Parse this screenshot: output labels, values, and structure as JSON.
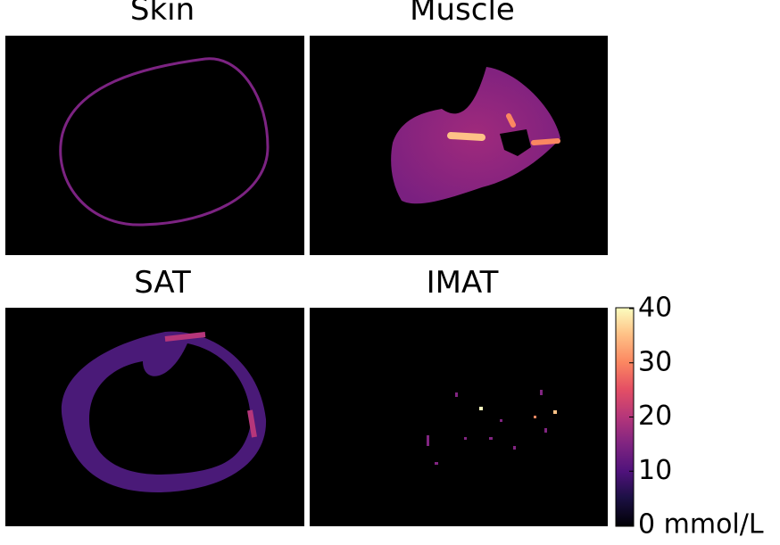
{
  "panels": [
    {
      "title": "Skin"
    },
    {
      "title": "Muscle"
    },
    {
      "title": "SAT"
    },
    {
      "title": "IMAT"
    }
  ],
  "colorbar": {
    "lim": [
      0,
      40
    ],
    "ticks": [
      {
        "value": 0,
        "label": "0 mmol/L"
      },
      10,
      20,
      30,
      40
    ]
  }
}
